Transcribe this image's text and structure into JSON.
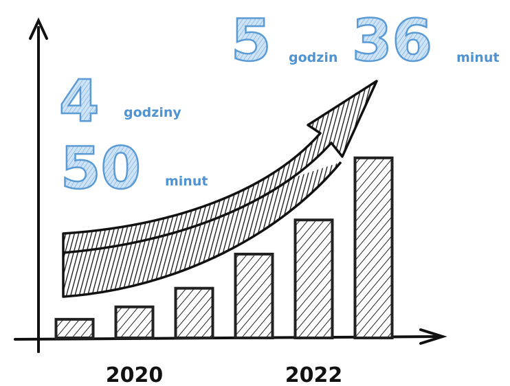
{
  "chart_data": {
    "type": "bar",
    "categories": [
      null,
      "2020",
      null,
      null,
      "2022",
      null
    ],
    "values": [
      6,
      10,
      16,
      27,
      38,
      58
    ],
    "ylim": [
      0,
      100
    ],
    "color": "#222222",
    "annotations": [
      "4",
      "godziny",
      "50",
      "minut",
      "5",
      "godzin",
      "36",
      "minut"
    ]
  }
}
